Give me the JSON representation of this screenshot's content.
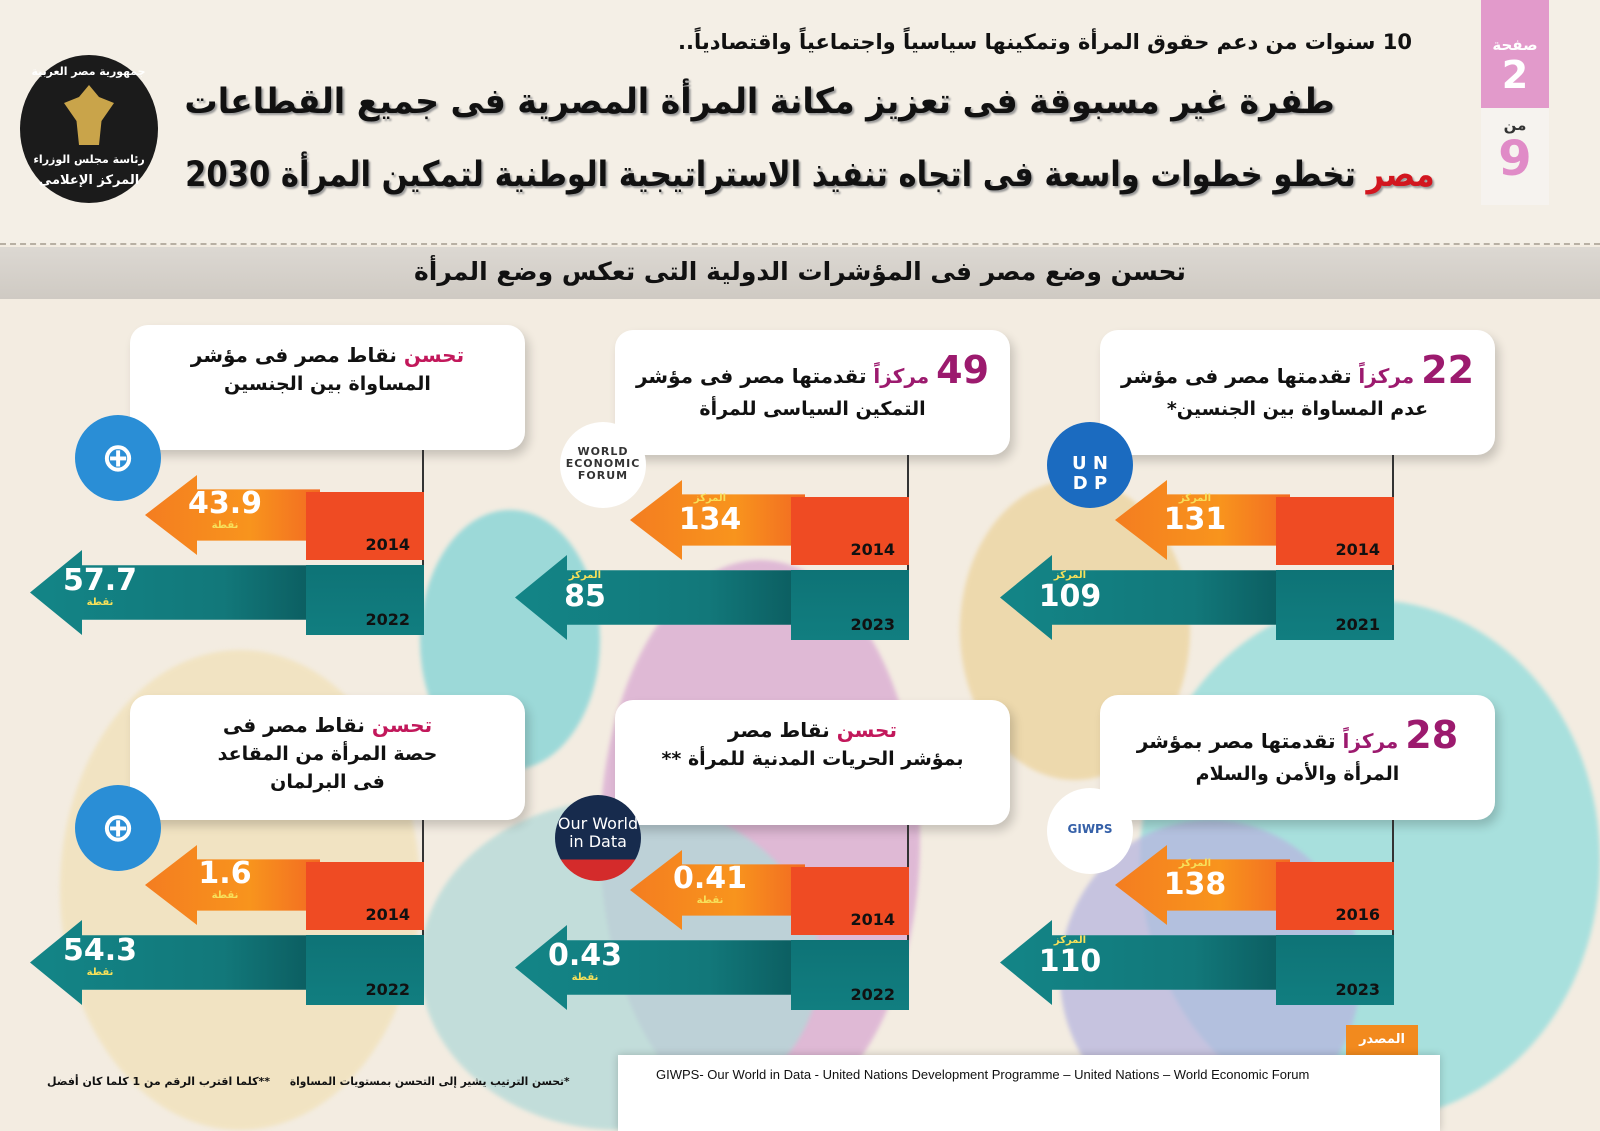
{
  "header": {
    "kicker": "10 سنوات من دعم حقوق المرأة وتمكينها سياسياً واجتماعياً واقتصادياً..",
    "title_line1": "طفرة غير مسبوقة فى تعزيز مكانة المرأة المصرية فى جميع القطاعات",
    "title_line2_accent": "مصر",
    "title_line2_rest": "تخطو خطوات واسعة فى اتجاه تنفيذ الاستراتيجية الوطنية لتمكين المرأة 2030",
    "accent_color": "#d2161f"
  },
  "pager": {
    "page_label": "صفحة",
    "page": "2",
    "of_label": "من",
    "total": "9"
  },
  "emblem": {
    "line1": "جمهورية مصر العربية",
    "line2": "رئاسة مجلس الوزراء",
    "line3": "المركز الإعلامى"
  },
  "section_title": "تحسن وضع مصر فى المؤشرات الدولية التى تعكس وضع المرأة",
  "colors": {
    "highlight": "#9c1a6e",
    "orange": "#f47d20",
    "teal": "#12787a"
  },
  "panels": [
    {
      "num": "22",
      "accent": "مركزاً",
      "rest": "تقدمتها مصر فى مؤشر",
      "lines": [
        "عدم المساواة بين الجنسين*"
      ],
      "logo": "undp-logo",
      "before": {
        "year": "2014",
        "value": "131",
        "unit": "المركز"
      },
      "after": {
        "year": "2021",
        "value": "109",
        "unit": "المركز"
      }
    },
    {
      "num": "49",
      "accent": "مركزاً",
      "rest": "تقدمتها مصر فى مؤشر",
      "lines": [
        "التمكين السياسى للمرأة"
      ],
      "logo": "wef-logo",
      "before": {
        "year": "2014",
        "value": "134",
        "unit": "المركز"
      },
      "after": {
        "year": "2023",
        "value": "85",
        "unit": "المركز"
      }
    },
    {
      "num": "",
      "accent": "تحسن",
      "rest": "نقاط مصر فى مؤشر",
      "lines": [
        "المساواة بين الجنسين"
      ],
      "logo": "un-logo",
      "before": {
        "year": "2014",
        "value": "43.9",
        "unit": "نقطة"
      },
      "after": {
        "year": "2022",
        "value": "57.7",
        "unit": "نقطة"
      }
    },
    {
      "num": "28",
      "accent": "مركزاً",
      "rest": "تقدمتها مصر بمؤشر",
      "lines": [
        "المرأة والأمن والسلام"
      ],
      "logo": "giwps-logo",
      "before": {
        "year": "2016",
        "value": "138",
        "unit": "المركز"
      },
      "after": {
        "year": "2023",
        "value": "110",
        "unit": "المركز"
      }
    },
    {
      "num": "",
      "accent": "تحسن",
      "rest": "نقاط مصر",
      "lines": [
        "بمؤشر الحريات المدنية للمرأة **"
      ],
      "logo": "owid-logo",
      "before": {
        "year": "2014",
        "value": "0.41",
        "unit": "نقطة"
      },
      "after": {
        "year": "2022",
        "value": "0.43",
        "unit": "نقطة"
      }
    },
    {
      "num": "",
      "accent": "تحسن",
      "rest": "نقاط مصر فى",
      "lines": [
        "حصة المرأة من المقاعد",
        "فى البرلمان"
      ],
      "logo": "un-logo",
      "before": {
        "year": "2014",
        "value": "1.6",
        "unit": "نقطة"
      },
      "after": {
        "year": "2022",
        "value": "54.3",
        "unit": "نقطة"
      }
    }
  ],
  "logos": {
    "wef": "WORLD ECONOMIC FORUM",
    "undp_top": "U N",
    "undp_bottom": "D P",
    "owid": "Our World in Data",
    "giwps": "GIWPS",
    "un": "⊕"
  },
  "source": {
    "label": "المصدر",
    "text": "GIWPS- Our World in Data - United Nations Development Programme – United Nations – World Economic Forum"
  },
  "notes": {
    "ranking": "*تحسن الترتيب يشير إلى التحسن بمستويات المساواة",
    "closer": "**كلما اقترب الرقم من 1 كلما كان أفضل"
  }
}
